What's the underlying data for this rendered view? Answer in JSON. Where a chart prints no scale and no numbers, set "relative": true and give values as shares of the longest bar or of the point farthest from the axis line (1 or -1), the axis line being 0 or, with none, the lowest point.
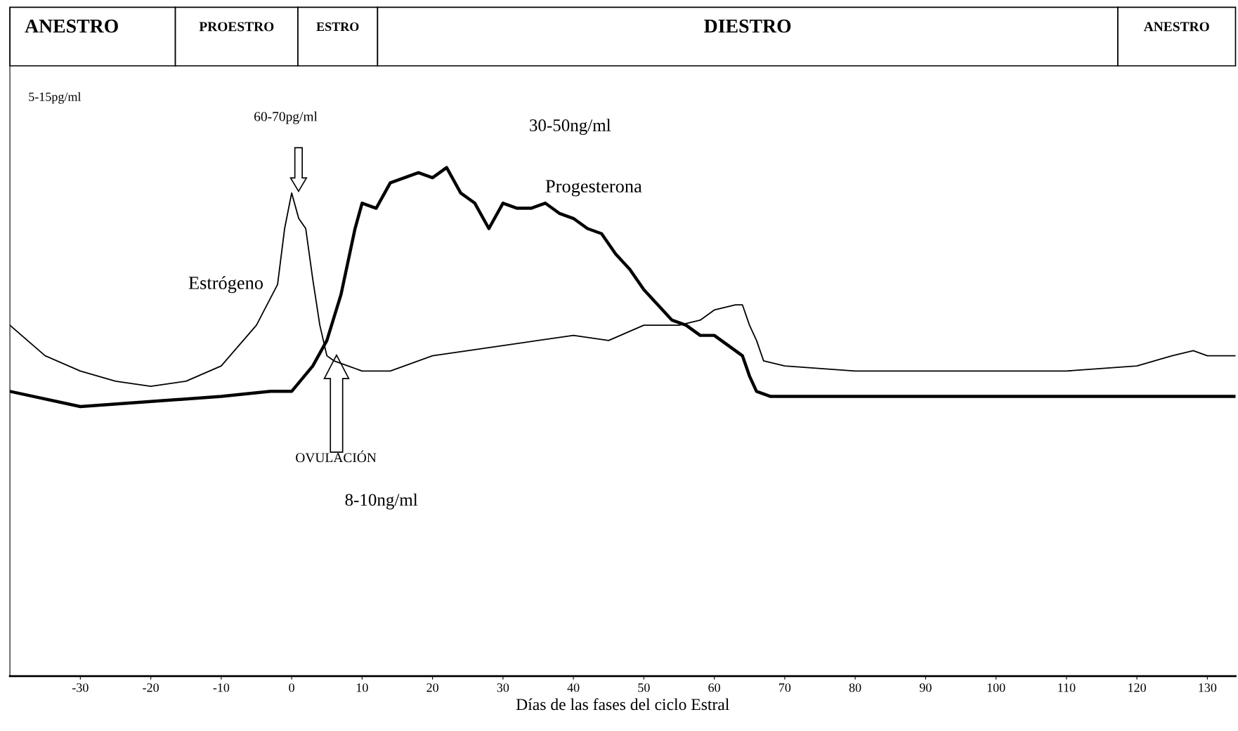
{
  "chart_data": {
    "type": "line",
    "relative": true,
    "xlabel": "Días de las fases del ciclo Estral",
    "xlim": [
      -40,
      134
    ],
    "xticks": [
      -30,
      -20,
      -10,
      0,
      10,
      20,
      30,
      40,
      50,
      60,
      70,
      80,
      90,
      100,
      110,
      120,
      130
    ],
    "grid": false,
    "legend": false,
    "marker": "none",
    "line_style": "solid",
    "series": [
      {
        "name": "Estrógeno",
        "color": "#000000",
        "x": [
          -40,
          -35,
          -30,
          -25,
          -20,
          -15,
          -10,
          -5,
          -2,
          -1,
          0,
          1,
          2,
          3,
          4,
          5,
          6,
          8,
          10,
          14,
          20,
          30,
          40,
          45,
          50,
          55,
          58,
          60,
          63,
          64,
          65,
          66,
          67,
          70,
          80,
          90,
          100,
          110,
          120,
          125,
          128,
          130,
          134
        ],
        "values": [
          0.69,
          0.63,
          0.6,
          0.58,
          0.57,
          0.58,
          0.61,
          0.69,
          0.77,
          0.88,
          0.95,
          0.9,
          0.88,
          0.78,
          0.69,
          0.63,
          0.62,
          0.61,
          0.6,
          0.6,
          0.63,
          0.65,
          0.67,
          0.66,
          0.69,
          0.69,
          0.7,
          0.72,
          0.73,
          0.73,
          0.69,
          0.66,
          0.62,
          0.61,
          0.6,
          0.6,
          0.6,
          0.6,
          0.61,
          0.63,
          0.64,
          0.63,
          0.63
        ]
      },
      {
        "name": "Progesterona",
        "color": "#000000",
        "x": [
          -40,
          -30,
          -20,
          -10,
          -3,
          0,
          3,
          5,
          7,
          9,
          10,
          12,
          14,
          16,
          18,
          20,
          22,
          24,
          26,
          28,
          30,
          32,
          34,
          36,
          38,
          40,
          42,
          44,
          46,
          48,
          50,
          52,
          54,
          56,
          58,
          60,
          62,
          64,
          65,
          66,
          68,
          70,
          80,
          90,
          100,
          110,
          120,
          130,
          134
        ],
        "values": [
          0.56,
          0.53,
          0.54,
          0.55,
          0.56,
          0.56,
          0.61,
          0.66,
          0.75,
          0.88,
          0.93,
          0.92,
          0.97,
          0.98,
          0.99,
          0.98,
          1.0,
          0.95,
          0.93,
          0.88,
          0.93,
          0.92,
          0.92,
          0.93,
          0.91,
          0.9,
          0.88,
          0.87,
          0.83,
          0.8,
          0.76,
          0.73,
          0.7,
          0.69,
          0.67,
          0.67,
          0.65,
          0.63,
          0.59,
          0.56,
          0.55,
          0.55,
          0.55,
          0.55,
          0.55,
          0.55,
          0.55,
          0.55,
          0.55
        ]
      }
    ],
    "annotations": [
      "ANESTRO",
      "PROESTRO",
      "ESTRO",
      "DIESTRO",
      "ANESTRO",
      "5-15pg/ml",
      "60-70pg/ml",
      "30-50ng/ml",
      "OVULACIÓN",
      "8-10ng/ml"
    ]
  }
}
